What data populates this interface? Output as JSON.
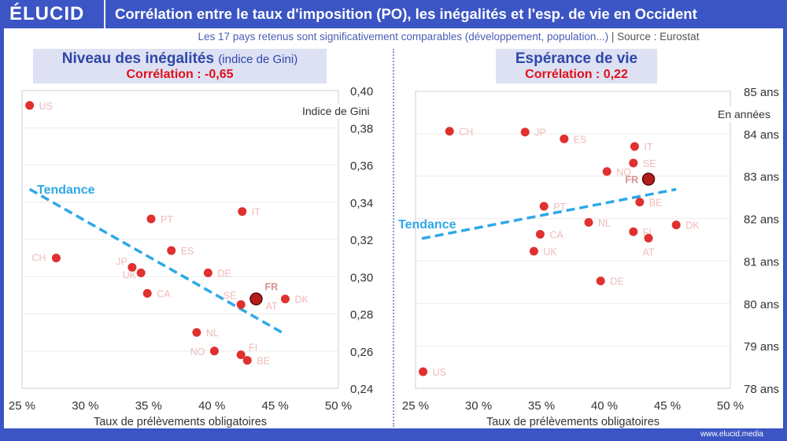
{
  "header": {
    "logo": "ÉLUCID",
    "title": "Corrélation entre le taux d'imposition (PO), les inégalités et l'esp. de vie en Occident"
  },
  "subtitle": {
    "text": "Les 17 pays retenus sont significativement comparables (développement, population...)",
    "separator": "|",
    "source": "Source : Eurostat"
  },
  "footer": {
    "url": "www.elucid.media"
  },
  "colors": {
    "brand": "#3b55c4",
    "dot": "#e03030",
    "france": "#b51c1c",
    "trend": "#2ea8e8",
    "correlation": "#e0101a"
  },
  "chart_data": [
    {
      "type": "scatter",
      "title": "Niveau des inégalités",
      "title_note": "(indice de Gini)",
      "correlation": "Corrélation : -0,65",
      "xlabel": "Taux de prélèvements obligatoires",
      "ylabel": "Indice de Gini",
      "xlim": [
        25,
        50
      ],
      "ylim": [
        0.24,
        0.4
      ],
      "xticks": [
        "25 %",
        "30 %",
        "35 %",
        "40 %",
        "45 %",
        "50 %"
      ],
      "yticks": [
        "0,24",
        "0,26",
        "0,28",
        "0,30",
        "0,32",
        "0,34",
        "0,36",
        "0,38",
        "0,40"
      ],
      "grid": true,
      "trend": {
        "label": "Tendance",
        "from": [
          25.6,
          0.347
        ],
        "to": [
          45.8,
          0.269
        ]
      },
      "points": [
        {
          "label": "US",
          "x": 25.6,
          "y": 0.392
        },
        {
          "label": "CH",
          "x": 27.7,
          "y": 0.31
        },
        {
          "label": "JP",
          "x": 33.7,
          "y": 0.305
        },
        {
          "label": "UK",
          "x": 34.4,
          "y": 0.302
        },
        {
          "label": "PT",
          "x": 35.2,
          "y": 0.331
        },
        {
          "label": "ES",
          "x": 36.8,
          "y": 0.314
        },
        {
          "label": "CA",
          "x": 34.9,
          "y": 0.291
        },
        {
          "label": "DE",
          "x": 39.7,
          "y": 0.302
        },
        {
          "label": "IT",
          "x": 42.4,
          "y": 0.335
        },
        {
          "label": "SE",
          "x": 42.3,
          "y": 0.285
        },
        {
          "label": "AT",
          "x": 43.5,
          "y": 0.287
        },
        {
          "label": "FR",
          "x": 43.5,
          "y": 0.288
        },
        {
          "label": "DK",
          "x": 45.8,
          "y": 0.288
        },
        {
          "label": "NL",
          "x": 38.8,
          "y": 0.27
        },
        {
          "label": "NO",
          "x": 40.2,
          "y": 0.26
        },
        {
          "label": "FI",
          "x": 42.3,
          "y": 0.258
        },
        {
          "label": "BE",
          "x": 42.8,
          "y": 0.255
        }
      ]
    },
    {
      "type": "scatter",
      "title": "Espérance de vie",
      "title_note": "",
      "correlation": "Corrélation : 0,22",
      "xlabel": "Taux de prélèvements obligatoires",
      "ylabel": "En années",
      "xlim": [
        25,
        50
      ],
      "ylim": [
        78,
        85
      ],
      "xticks": [
        "25 %",
        "30 %",
        "35 %",
        "40 %",
        "45 %",
        "50 %"
      ],
      "yticks": [
        "78 ans",
        "79 ans",
        "80 ans",
        "81 ans",
        "82 ans",
        "83 ans",
        "84 ans",
        "85 ans"
      ],
      "grid": true,
      "trend": {
        "label": "Tendance",
        "from": [
          25.5,
          81.53
        ],
        "to": [
          45.7,
          82.69
        ]
      },
      "points": [
        {
          "label": "CH",
          "x": 27.7,
          "y": 84.06
        },
        {
          "label": "JP",
          "x": 33.7,
          "y": 84.04
        },
        {
          "label": "ES",
          "x": 36.8,
          "y": 83.88
        },
        {
          "label": "IT",
          "x": 42.4,
          "y": 83.7
        },
        {
          "label": "SE",
          "x": 42.3,
          "y": 83.31
        },
        {
          "label": "NO",
          "x": 40.2,
          "y": 83.11
        },
        {
          "label": "FR",
          "x": 43.5,
          "y": 82.93
        },
        {
          "label": "BE",
          "x": 42.8,
          "y": 82.39
        },
        {
          "label": "PT",
          "x": 35.2,
          "y": 82.29
        },
        {
          "label": "NL",
          "x": 38.75,
          "y": 81.91
        },
        {
          "label": "DK",
          "x": 45.7,
          "y": 81.85
        },
        {
          "label": "FI",
          "x": 42.3,
          "y": 81.69
        },
        {
          "label": "AT",
          "x": 43.5,
          "y": 81.54
        },
        {
          "label": "CA",
          "x": 34.9,
          "y": 81.63
        },
        {
          "label": "UK",
          "x": 34.4,
          "y": 81.23
        },
        {
          "label": "DE",
          "x": 39.7,
          "y": 80.53
        },
        {
          "label": "US",
          "x": 25.6,
          "y": 78.39
        }
      ]
    }
  ]
}
